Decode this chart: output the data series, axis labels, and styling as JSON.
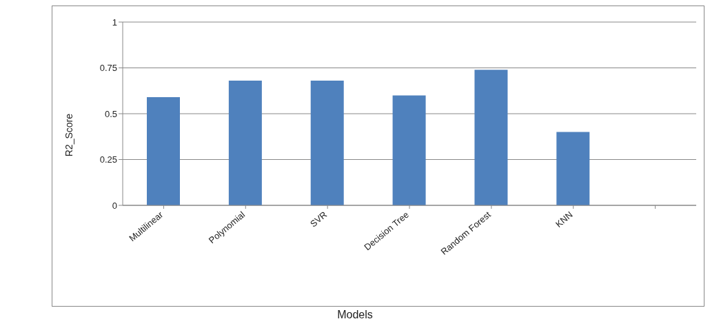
{
  "chart_data": {
    "type": "bar",
    "xlabel": "Models",
    "ylabel": "R2_Score",
    "categories": [
      "Multilinear",
      "Polynomial",
      "SVR",
      "Decision Tree",
      "Random Forest",
      "KNN",
      null
    ],
    "values": [
      0.59,
      0.68,
      0.68,
      0.6,
      0.74,
      0.4,
      null
    ],
    "color": "#4f81bd",
    "ylim": [
      0,
      1
    ],
    "yticks": [
      0,
      {
        "value": 0.25,
        "label": "0.25"
      },
      {
        "value": 0.5,
        "label": "0.5"
      },
      {
        "value": 0.75,
        "label": "0.75"
      },
      1
    ],
    "grid": "y",
    "legend": false
  }
}
